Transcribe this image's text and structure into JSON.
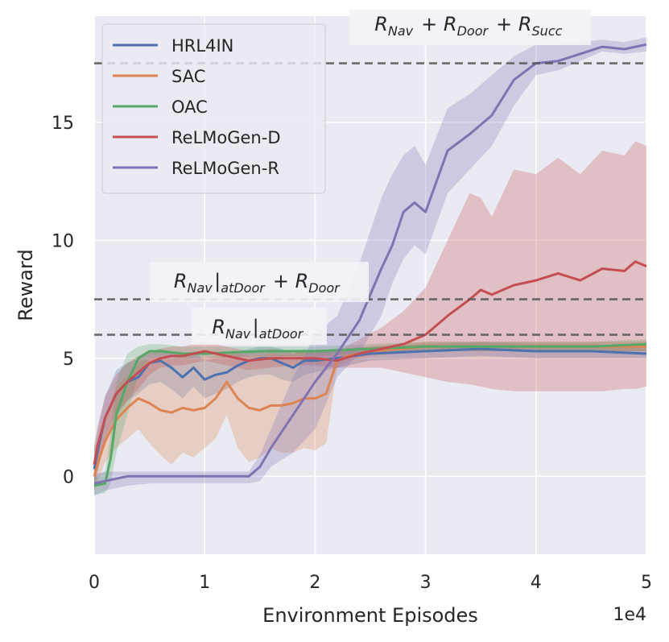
{
  "chart_data": {
    "type": "line",
    "title": "",
    "xlabel": "Environment Episodes",
    "ylabel": "Reward",
    "x_offset_label": "1e4",
    "xlim": [
      0,
      5
    ],
    "ylim": [
      -3.3,
      19.5
    ],
    "x_ticks": [
      0,
      1,
      2,
      3,
      4,
      5
    ],
    "y_ticks": [
      0,
      5,
      10,
      15
    ],
    "grid": true,
    "legend_position": "top-left",
    "reference_lines": [
      {
        "y": 17.5,
        "label": "R_Nav + R_Door + R_Succ"
      },
      {
        "y": 7.5,
        "label": "R_Nav|atDoor + R_Door"
      },
      {
        "y": 6.0,
        "label": "R_Nav|atDoor"
      }
    ],
    "annotations": [
      {
        "id": "succ",
        "parts": [
          [
            "R",
            "Nav"
          ],
          "+",
          [
            "R",
            "Door"
          ],
          "+",
          [
            "R",
            "Succ"
          ]
        ]
      },
      {
        "id": "door",
        "parts": [
          [
            "R",
            "Nav"
          ],
          "|",
          [
            "",
            "atDoor"
          ],
          "+",
          [
            "R",
            "Door"
          ]
        ]
      },
      {
        "id": "atdoor",
        "parts": [
          [
            "R",
            "Nav"
          ],
          "|",
          [
            "",
            "atDoor"
          ]
        ]
      }
    ],
    "series": [
      {
        "name": "HRL4IN",
        "color": "#4c72b0",
        "x": [
          0,
          0.05,
          0.1,
          0.2,
          0.3,
          0.4,
          0.5,
          0.6,
          0.7,
          0.8,
          0.9,
          1.0,
          1.1,
          1.2,
          1.3,
          1.4,
          1.5,
          1.6,
          1.7,
          1.8,
          1.9,
          2.0,
          2.2,
          2.5,
          3.0,
          3.5,
          4.0,
          4.5,
          5.0
        ],
        "mean": [
          0.3,
          1.5,
          2.5,
          3.5,
          4.0,
          4.2,
          4.8,
          4.9,
          4.6,
          4.2,
          4.6,
          4.1,
          4.3,
          4.4,
          4.7,
          4.9,
          5.0,
          5.0,
          4.8,
          4.6,
          4.9,
          4.9,
          5.0,
          5.2,
          5.3,
          5.4,
          5.3,
          5.3,
          5.2
        ],
        "lower": [
          -0.6,
          0.6,
          1.6,
          2.5,
          3.2,
          3.5,
          3.9,
          4.0,
          3.7,
          3.3,
          3.8,
          3.3,
          3.5,
          3.7,
          4.0,
          4.2,
          4.3,
          4.3,
          4.1,
          4.0,
          4.3,
          4.4,
          4.6,
          4.9,
          5.0,
          5.1,
          5.0,
          5.0,
          5.0
        ],
        "upper": [
          1.2,
          2.4,
          3.4,
          4.5,
          4.8,
          5.0,
          5.3,
          5.4,
          5.3,
          5.0,
          5.3,
          4.9,
          5.0,
          5.1,
          5.3,
          5.4,
          5.5,
          5.5,
          5.4,
          5.2,
          5.4,
          5.3,
          5.4,
          5.5,
          5.6,
          5.7,
          5.6,
          5.6,
          5.5
        ]
      },
      {
        "name": "SAC",
        "color": "#dd8452",
        "x": [
          0,
          0.05,
          0.1,
          0.2,
          0.3,
          0.4,
          0.5,
          0.6,
          0.7,
          0.8,
          0.9,
          1.0,
          1.1,
          1.2,
          1.3,
          1.4,
          1.5,
          1.6,
          1.7,
          1.8,
          1.9,
          2.0,
          2.1,
          2.15,
          2.2,
          2.3,
          2.5,
          3.0,
          3.5,
          4.0,
          4.5,
          5.0
        ],
        "mean": [
          0.0,
          0.8,
          1.5,
          2.4,
          2.9,
          3.3,
          3.1,
          2.8,
          2.7,
          2.9,
          2.8,
          2.9,
          3.3,
          4.0,
          3.3,
          2.9,
          2.8,
          3.0,
          3.0,
          3.1,
          3.3,
          3.3,
          3.5,
          4.2,
          4.9,
          5.1,
          5.3,
          5.5,
          5.5,
          5.5,
          5.5,
          5.5
        ],
        "lower": [
          -0.6,
          0.0,
          0.6,
          1.2,
          1.6,
          2.0,
          1.4,
          0.9,
          0.5,
          1.0,
          0.8,
          1.2,
          1.6,
          2.6,
          1.2,
          0.6,
          0.8,
          1.2,
          1.0,
          1.0,
          1.2,
          1.1,
          1.4,
          3.0,
          4.6,
          4.9,
          5.1,
          5.3,
          5.3,
          5.3,
          5.3,
          5.3
        ],
        "upper": [
          0.8,
          1.6,
          2.5,
          3.8,
          4.3,
          4.8,
          5.0,
          5.1,
          5.0,
          5.1,
          5.0,
          5.0,
          5.1,
          5.3,
          5.2,
          5.1,
          5.1,
          5.2,
          5.2,
          5.2,
          5.3,
          5.3,
          5.3,
          5.4,
          5.3,
          5.4,
          5.5,
          5.7,
          5.7,
          5.7,
          5.7,
          5.7
        ]
      },
      {
        "name": "OAC",
        "color": "#55a868",
        "x": [
          0,
          0.1,
          0.15,
          0.2,
          0.3,
          0.4,
          0.5,
          0.6,
          0.8,
          1.0,
          1.5,
          2.0,
          2.5,
          3.0,
          3.5,
          4.0,
          4.5,
          5.0
        ],
        "mean": [
          -0.4,
          -0.3,
          0.8,
          2.6,
          4.0,
          5.0,
          5.3,
          5.3,
          5.2,
          5.2,
          5.3,
          5.3,
          5.4,
          5.5,
          5.5,
          5.5,
          5.5,
          5.6
        ],
        "lower": [
          -0.8,
          -0.7,
          -0.3,
          1.0,
          2.6,
          4.3,
          5.0,
          5.1,
          5.0,
          5.0,
          5.1,
          5.1,
          5.2,
          5.3,
          5.3,
          5.3,
          5.3,
          5.3
        ],
        "upper": [
          0.0,
          0.2,
          1.8,
          4.0,
          5.2,
          5.5,
          5.6,
          5.6,
          5.5,
          5.5,
          5.5,
          5.5,
          5.6,
          5.7,
          5.7,
          5.7,
          5.7,
          5.8
        ]
      },
      {
        "name": "ReLMoGen-D",
        "color": "#c44e52",
        "x": [
          0,
          0.03,
          0.1,
          0.2,
          0.3,
          0.4,
          0.5,
          0.6,
          0.7,
          0.8,
          0.9,
          1.0,
          1.2,
          1.4,
          1.6,
          1.8,
          2.0,
          2.2,
          2.4,
          2.6,
          2.8,
          3.0,
          3.2,
          3.4,
          3.5,
          3.6,
          3.8,
          4.0,
          4.2,
          4.4,
          4.6,
          4.8,
          4.9,
          5.0
        ],
        "mean": [
          0.5,
          1.3,
          2.5,
          3.5,
          4.0,
          4.4,
          4.8,
          5.0,
          5.1,
          5.1,
          5.2,
          5.3,
          5.1,
          4.9,
          5.0,
          5.0,
          5.0,
          4.9,
          5.2,
          5.4,
          5.6,
          6.0,
          6.8,
          7.5,
          7.9,
          7.7,
          8.1,
          8.3,
          8.6,
          8.3,
          8.8,
          8.7,
          9.1,
          8.9
        ],
        "lower": [
          -0.3,
          0.5,
          1.6,
          2.7,
          3.2,
          3.7,
          4.3,
          4.6,
          4.7,
          4.7,
          4.8,
          4.9,
          4.7,
          4.5,
          4.6,
          4.7,
          4.7,
          4.6,
          4.6,
          4.6,
          4.4,
          4.2,
          4.0,
          3.9,
          3.8,
          3.7,
          3.6,
          3.6,
          3.6,
          3.6,
          3.6,
          3.7,
          3.7,
          3.8
        ],
        "upper": [
          1.3,
          2.1,
          3.4,
          4.3,
          4.8,
          5.1,
          5.3,
          5.4,
          5.5,
          5.5,
          5.6,
          5.7,
          5.5,
          5.3,
          5.4,
          5.3,
          5.3,
          5.3,
          5.8,
          6.3,
          7.0,
          8.0,
          10.0,
          12.0,
          11.8,
          11.0,
          13.0,
          12.8,
          13.5,
          12.8,
          13.8,
          13.6,
          14.2,
          14.0
        ]
      },
      {
        "name": "ReLMoGen-R",
        "color": "#8172b2",
        "x": [
          0,
          0.1,
          0.3,
          0.5,
          0.8,
          1.0,
          1.2,
          1.4,
          1.5,
          1.6,
          1.8,
          2.0,
          2.2,
          2.4,
          2.6,
          2.7,
          2.8,
          2.9,
          3.0,
          3.2,
          3.4,
          3.6,
          3.8,
          4.0,
          4.2,
          4.4,
          4.6,
          4.8,
          5.0
        ],
        "mean": [
          -0.3,
          -0.2,
          0.0,
          0.0,
          0.0,
          0.0,
          0.0,
          0.0,
          0.4,
          1.2,
          2.6,
          4.0,
          5.2,
          6.6,
          8.8,
          9.8,
          11.2,
          11.6,
          11.2,
          13.8,
          14.5,
          15.3,
          16.8,
          17.5,
          17.6,
          17.9,
          18.2,
          18.1,
          18.3
        ],
        "lower": [
          -0.8,
          -0.6,
          -0.4,
          -0.3,
          -0.3,
          -0.3,
          -0.3,
          -0.3,
          -0.2,
          0.4,
          1.0,
          2.0,
          4.2,
          5.2,
          6.8,
          8.2,
          9.2,
          9.8,
          9.4,
          12.0,
          13.0,
          14.0,
          15.7,
          17.0,
          17.2,
          17.6,
          18.0,
          17.9,
          18.0
        ],
        "upper": [
          0.1,
          0.2,
          0.2,
          0.2,
          0.2,
          0.2,
          0.2,
          0.2,
          0.9,
          2.0,
          4.2,
          6.0,
          6.8,
          9.0,
          11.8,
          12.8,
          13.6,
          14.0,
          13.2,
          15.6,
          16.2,
          17.0,
          17.8,
          18.3,
          18.3,
          18.4,
          18.5,
          18.4,
          18.6
        ]
      }
    ]
  }
}
